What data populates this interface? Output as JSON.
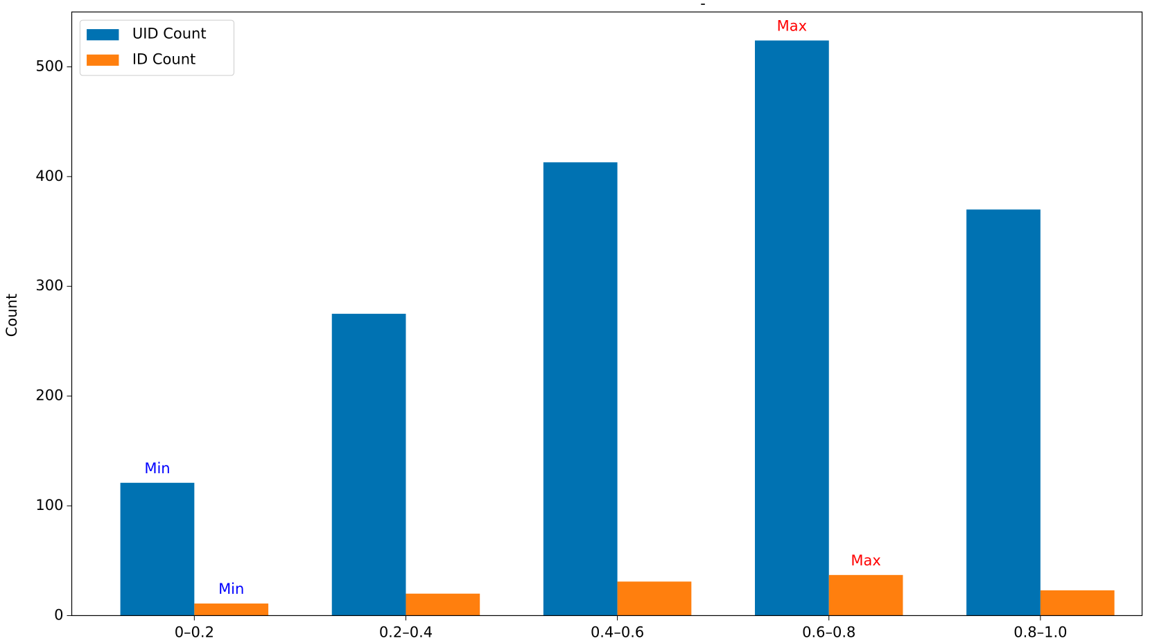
{
  "chart_data": {
    "type": "bar",
    "title": "-",
    "y_label": "Count",
    "categories": [
      "0–0.2",
      "0.2–0.4",
      "0.4–0.6",
      "0.6–0.8",
      "0.8–1.0"
    ],
    "series": [
      {
        "name": "UID Count",
        "color": "#0072b2",
        "values": [
          121,
          275,
          413,
          524,
          370
        ]
      },
      {
        "name": "ID Count",
        "color": "#ff7f0e",
        "values": [
          11,
          20,
          31,
          37,
          23
        ]
      }
    ],
    "annotations": [
      {
        "text": "Min",
        "series": 0,
        "index": 0,
        "color": "blue"
      },
      {
        "text": "Max",
        "series": 0,
        "index": 3,
        "color": "red"
      },
      {
        "text": "Min",
        "series": 1,
        "index": 0,
        "color": "blue"
      },
      {
        "text": "Max",
        "series": 1,
        "index": 3,
        "color": "red"
      }
    ],
    "ylim": [
      0,
      550
    ],
    "yticks": [
      0,
      100,
      200,
      300,
      400,
      500
    ],
    "grid": false,
    "legend": "upper left"
  }
}
